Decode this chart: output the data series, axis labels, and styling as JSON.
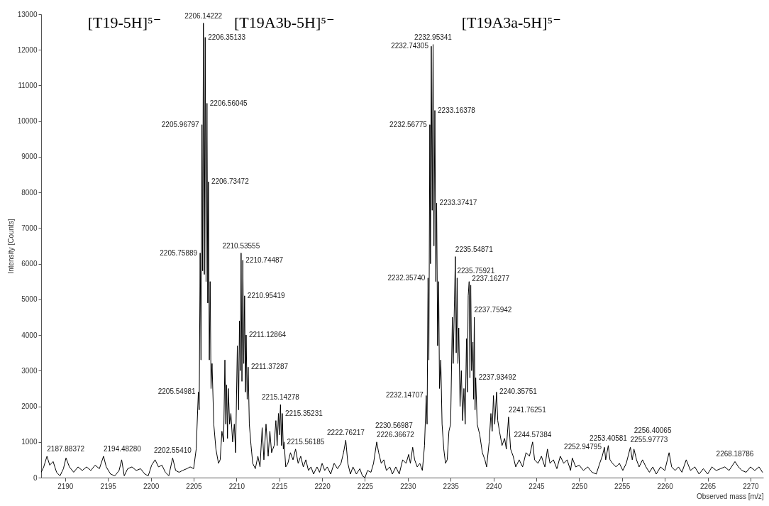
{
  "chart_data": {
    "type": "line",
    "xlabel": "Observed mass [m/z]",
    "ylabel": "Intensity [Counts]",
    "xlim": [
      2187.2,
      2271.5
    ],
    "xticks": [
      2190,
      2195,
      2200,
      2205,
      2210,
      2215,
      2220,
      2225,
      2230,
      2235,
      2240,
      2245,
      2250,
      2255,
      2260,
      2265,
      2270
    ],
    "ylim": [
      0,
      13000
    ],
    "yticks": [
      0,
      1000,
      2000,
      3000,
      4000,
      5000,
      6000,
      7000,
      8000,
      9000,
      10000,
      11000,
      12000,
      13000
    ],
    "x": [
      2187.2,
      2187.5,
      2187.88,
      2188.2,
      2188.6,
      2189.0,
      2189.4,
      2189.8,
      2190.1,
      2190.5,
      2191.0,
      2191.5,
      2192.0,
      2192.5,
      2193.0,
      2193.5,
      2194.0,
      2194.48,
      2194.8,
      2195.3,
      2195.8,
      2196.3,
      2196.6,
      2196.9,
      2197.3,
      2197.8,
      2198.3,
      2198.8,
      2199.3,
      2199.7,
      2200.1,
      2200.5,
      2200.9,
      2201.3,
      2201.7,
      2202.1,
      2202.55,
      2202.9,
      2203.3,
      2203.7,
      2204.2,
      2204.6,
      2205.0,
      2205.3,
      2205.55,
      2205.65,
      2205.76,
      2205.86,
      2205.97,
      2206.05,
      2206.14,
      2206.25,
      2206.35,
      2206.45,
      2206.56,
      2206.65,
      2206.73,
      2206.83,
      2206.93,
      2207.03,
      2207.15,
      2207.35,
      2207.6,
      2207.9,
      2208.1,
      2208.3,
      2208.5,
      2208.65,
      2208.75,
      2208.85,
      2208.95,
      2209.05,
      2209.2,
      2209.35,
      2209.55,
      2209.75,
      2209.9,
      2210.1,
      2210.25,
      2210.35,
      2210.45,
      2210.54,
      2210.64,
      2210.74,
      2210.85,
      2210.95,
      2211.05,
      2211.13,
      2211.25,
      2211.37,
      2211.5,
      2211.7,
      2211.9,
      2212.2,
      2212.5,
      2212.75,
      2213.0,
      2213.2,
      2213.45,
      2213.7,
      2213.9,
      2214.1,
      2214.4,
      2214.6,
      2214.75,
      2214.9,
      2215.0,
      2215.14,
      2215.25,
      2215.35,
      2215.47,
      2215.56,
      2215.75,
      2216.0,
      2216.3,
      2216.6,
      2216.9,
      2217.2,
      2217.5,
      2217.8,
      2218.1,
      2218.4,
      2218.7,
      2219.0,
      2219.4,
      2219.7,
      2220.0,
      2220.3,
      2220.6,
      2221.0,
      2221.4,
      2221.8,
      2222.2,
      2222.5,
      2222.76,
      2223.0,
      2223.3,
      2223.6,
      2224.0,
      2224.4,
      2224.7,
      2225.0,
      2225.3,
      2225.7,
      2226.0,
      2226.37,
      2226.6,
      2226.9,
      2227.2,
      2227.5,
      2227.9,
      2228.2,
      2228.6,
      2229.0,
      2229.4,
      2229.8,
      2230.1,
      2230.3,
      2230.57,
      2230.8,
      2231.1,
      2231.4,
      2231.7,
      2231.95,
      2232.15,
      2232.25,
      2232.36,
      2232.46,
      2232.57,
      2232.65,
      2232.74,
      2232.85,
      2232.95,
      2233.05,
      2233.16,
      2233.27,
      2233.37,
      2233.48,
      2233.6,
      2233.7,
      2233.85,
      2234.0,
      2234.2,
      2234.4,
      2234.6,
      2234.8,
      2235.0,
      2235.2,
      2235.3,
      2235.45,
      2235.55,
      2235.65,
      2235.76,
      2235.85,
      2235.95,
      2236.1,
      2236.25,
      2236.4,
      2236.55,
      2236.7,
      2236.85,
      2236.95,
      2237.05,
      2237.16,
      2237.25,
      2237.35,
      2237.45,
      2237.6,
      2237.68,
      2237.76,
      2237.85,
      2237.93,
      2238.1,
      2238.4,
      2238.7,
      2239.0,
      2239.2,
      2239.5,
      2239.7,
      2239.85,
      2240.0,
      2240.15,
      2240.36,
      2240.5,
      2240.7,
      2241.0,
      2241.3,
      2241.5,
      2241.76,
      2242.0,
      2242.3,
      2242.6,
      2243.0,
      2243.4,
      2243.8,
      2244.2,
      2244.57,
      2244.8,
      2245.2,
      2245.6,
      2246.0,
      2246.3,
      2246.6,
      2247.0,
      2247.4,
      2247.8,
      2248.2,
      2248.6,
      2249.0,
      2249.2,
      2249.6,
      2250.0,
      2250.5,
      2251.0,
      2251.5,
      2252.0,
      2252.4,
      2252.7,
      2252.95,
      2253.1,
      2253.4,
      2253.6,
      2253.9,
      2254.3,
      2254.7,
      2255.1,
      2255.5,
      2255.98,
      2256.2,
      2256.4,
      2256.7,
      2257.0,
      2257.4,
      2257.8,
      2258.2,
      2258.6,
      2259.0,
      2259.5,
      2260.0,
      2260.5,
      2260.8,
      2261.2,
      2261.6,
      2262.0,
      2262.5,
      2263.0,
      2263.5,
      2264.0,
      2264.5,
      2265.0,
      2265.5,
      2266.0,
      2266.5,
      2267.0,
      2267.5,
      2268.19,
      2268.6,
      2269.0,
      2269.5,
      2270.0,
      2270.5,
      2271.0,
      2271.4
    ],
    "series": [
      {
        "color": "#000000",
        "values": [
          150,
          300,
          600,
          350,
          450,
          150,
          50,
          250,
          550,
          300,
          150,
          300,
          200,
          300,
          200,
          350,
          250,
          600,
          300,
          100,
          50,
          200,
          500,
          50,
          250,
          300,
          200,
          250,
          100,
          50,
          350,
          500,
          300,
          350,
          150,
          50,
          550,
          200,
          150,
          200,
          250,
          300,
          250,
          800,
          2400,
          1900,
          6300,
          3300,
          9900,
          5800,
          12750,
          5700,
          12350,
          5500,
          10500,
          4900,
          8300,
          3300,
          5500,
          2500,
          3200,
          1500,
          800,
          400,
          500,
          1300,
          1000,
          3300,
          1500,
          2600,
          1100,
          2500,
          1500,
          1800,
          1000,
          1500,
          700,
          3700,
          1900,
          4400,
          3000,
          6300,
          2700,
          6100,
          3200,
          5100,
          2400,
          4000,
          2200,
          3100,
          1500,
          900,
          400,
          250,
          600,
          300,
          1400,
          500,
          1500,
          600,
          1300,
          700,
          900,
          1600,
          900,
          1800,
          1200,
          2050,
          900,
          1800,
          800,
          1000,
          300,
          400,
          700,
          500,
          800,
          400,
          600,
          300,
          500,
          200,
          300,
          100,
          300,
          150,
          400,
          200,
          300,
          100,
          400,
          250,
          400,
          700,
          1050,
          400,
          100,
          300,
          100,
          250,
          50,
          0,
          200,
          150,
          400,
          1000,
          700,
          400,
          500,
          200,
          300,
          100,
          300,
          100,
          500,
          400,
          650,
          400,
          850,
          500,
          300,
          400,
          200,
          900,
          2300,
          1500,
          5600,
          3300,
          9900,
          6000,
          12100,
          7500,
          12150,
          6500,
          10300,
          5500,
          7700,
          3700,
          5500,
          2500,
          3300,
          1500,
          800,
          400,
          500,
          1300,
          1500,
          4500,
          3200,
          5000,
          6200,
          3500,
          5600,
          3200,
          4200,
          2000,
          3000,
          1600,
          2500,
          1500,
          3900,
          2400,
          5100,
          5500,
          2800,
          5400,
          3000,
          3800,
          2200,
          4500,
          1900,
          2800,
          1500,
          1200,
          700,
          500,
          300,
          1000,
          1800,
          1300,
          2300,
          1500,
          2400,
          1600,
          1300,
          900,
          1100,
          800,
          1700,
          800,
          600,
          300,
          500,
          300,
          700,
          600,
          1000,
          500,
          400,
          600,
          300,
          800,
          400,
          500,
          250,
          600,
          400,
          500,
          200,
          550,
          300,
          350,
          200,
          300,
          150,
          100,
          400,
          600,
          850,
          500,
          900,
          500,
          400,
          300,
          400,
          200,
          400,
          850,
          500,
          800,
          500,
          300,
          500,
          300,
          150,
          300,
          100,
          300,
          200,
          700,
          300,
          200,
          300,
          150,
          500,
          200,
          300,
          100,
          250,
          100,
          300,
          200,
          250,
          300,
          200,
          450,
          300,
          200,
          150,
          300,
          200,
          300,
          150
        ]
      }
    ],
    "annotations": [
      "[T19-5H]⁵⁻",
      "[T19A3b-5H]⁵⁻",
      "[T19A3a-5H]⁵⁻",
      {
        "text": "2187.88372",
        "x": 2187.88372,
        "y": 600
      },
      {
        "text": "2194.48280",
        "x": 2194.4828,
        "y": 600
      },
      {
        "text": "2202.55410",
        "x": 2202.5541,
        "y": 550
      },
      {
        "text": "2205.54981",
        "x": 2205.54981,
        "y": 2400
      },
      {
        "text": "2205.75889",
        "x": 2205.75889,
        "y": 6300
      },
      {
        "text": "2205.96797",
        "x": 2205.96797,
        "y": 9900
      },
      {
        "text": "2206.14222",
        "x": 2206.14222,
        "y": 12750
      },
      {
        "text": "2206.35133",
        "x": 2206.35133,
        "y": 12350
      },
      {
        "text": "2206.56045",
        "x": 2206.56045,
        "y": 10500
      },
      {
        "text": "2206.73472",
        "x": 2206.73472,
        "y": 8300
      },
      {
        "text": "2210.53555",
        "x": 2210.53555,
        "y": 6300
      },
      {
        "text": "2210.74487",
        "x": 2210.74487,
        "y": 6100
      },
      {
        "text": "2210.95419",
        "x": 2210.95419,
        "y": 5100
      },
      {
        "text": "2211.12864",
        "x": 2211.12864,
        "y": 4000
      },
      {
        "text": "2211.37287",
        "x": 2211.37287,
        "y": 3100
      },
      {
        "text": "2215.14278",
        "x": 2215.14278,
        "y": 2050
      },
      {
        "text": "2215.35231",
        "x": 2215.35231,
        "y": 1800
      },
      {
        "text": "2215.56185",
        "x": 2215.56185,
        "y": 1000
      },
      {
        "text": "2222.76217",
        "x": 2222.76217,
        "y": 1050
      },
      {
        "text": "2226.36672",
        "x": 2226.36672,
        "y": 1000
      },
      {
        "text": "2230.56987",
        "x": 2230.56987,
        "y": 850
      },
      {
        "text": "2232.14707",
        "x": 2232.14707,
        "y": 2300
      },
      {
        "text": "2232.35740",
        "x": 2232.3574,
        "y": 5600
      },
      {
        "text": "2232.56775",
        "x": 2232.56775,
        "y": 9900
      },
      {
        "text": "2232.74305",
        "x": 2232.74305,
        "y": 12100
      },
      {
        "text": "2232.95341",
        "x": 2232.95341,
        "y": 12150
      },
      {
        "text": "2233.16378",
        "x": 2233.16378,
        "y": 10300
      },
      {
        "text": "2233.37417",
        "x": 2233.37417,
        "y": 7700
      },
      {
        "text": "2235.54871",
        "x": 2235.54871,
        "y": 6200
      },
      {
        "text": "2235.75921",
        "x": 2235.75921,
        "y": 5600
      },
      {
        "text": "2237.16277",
        "x": 2237.16277,
        "y": 5500
      },
      {
        "text": "2237.75942",
        "x": 2237.75942,
        "y": 4500
      },
      {
        "text": "2237.93492",
        "x": 2237.93492,
        "y": 2800
      },
      {
        "text": "2240.35751",
        "x": 2240.35751,
        "y": 2400
      },
      {
        "text": "2241.76251",
        "x": 2241.76251,
        "y": 1700
      },
      {
        "text": "2244.57384",
        "x": 2244.57384,
        "y": 1000
      },
      {
        "text": "2252.94795",
        "x": 2252.94795,
        "y": 850
      },
      {
        "text": "2253.40581",
        "x": 2253.40581,
        "y": 900
      },
      {
        "text": "2255.97773",
        "x": 2255.97773,
        "y": 850
      },
      {
        "text": "2256.40065",
        "x": 2256.40065,
        "y": 800
      },
      {
        "text": "2268.18786",
        "x": 2268.18786,
        "y": 450
      }
    ]
  }
}
